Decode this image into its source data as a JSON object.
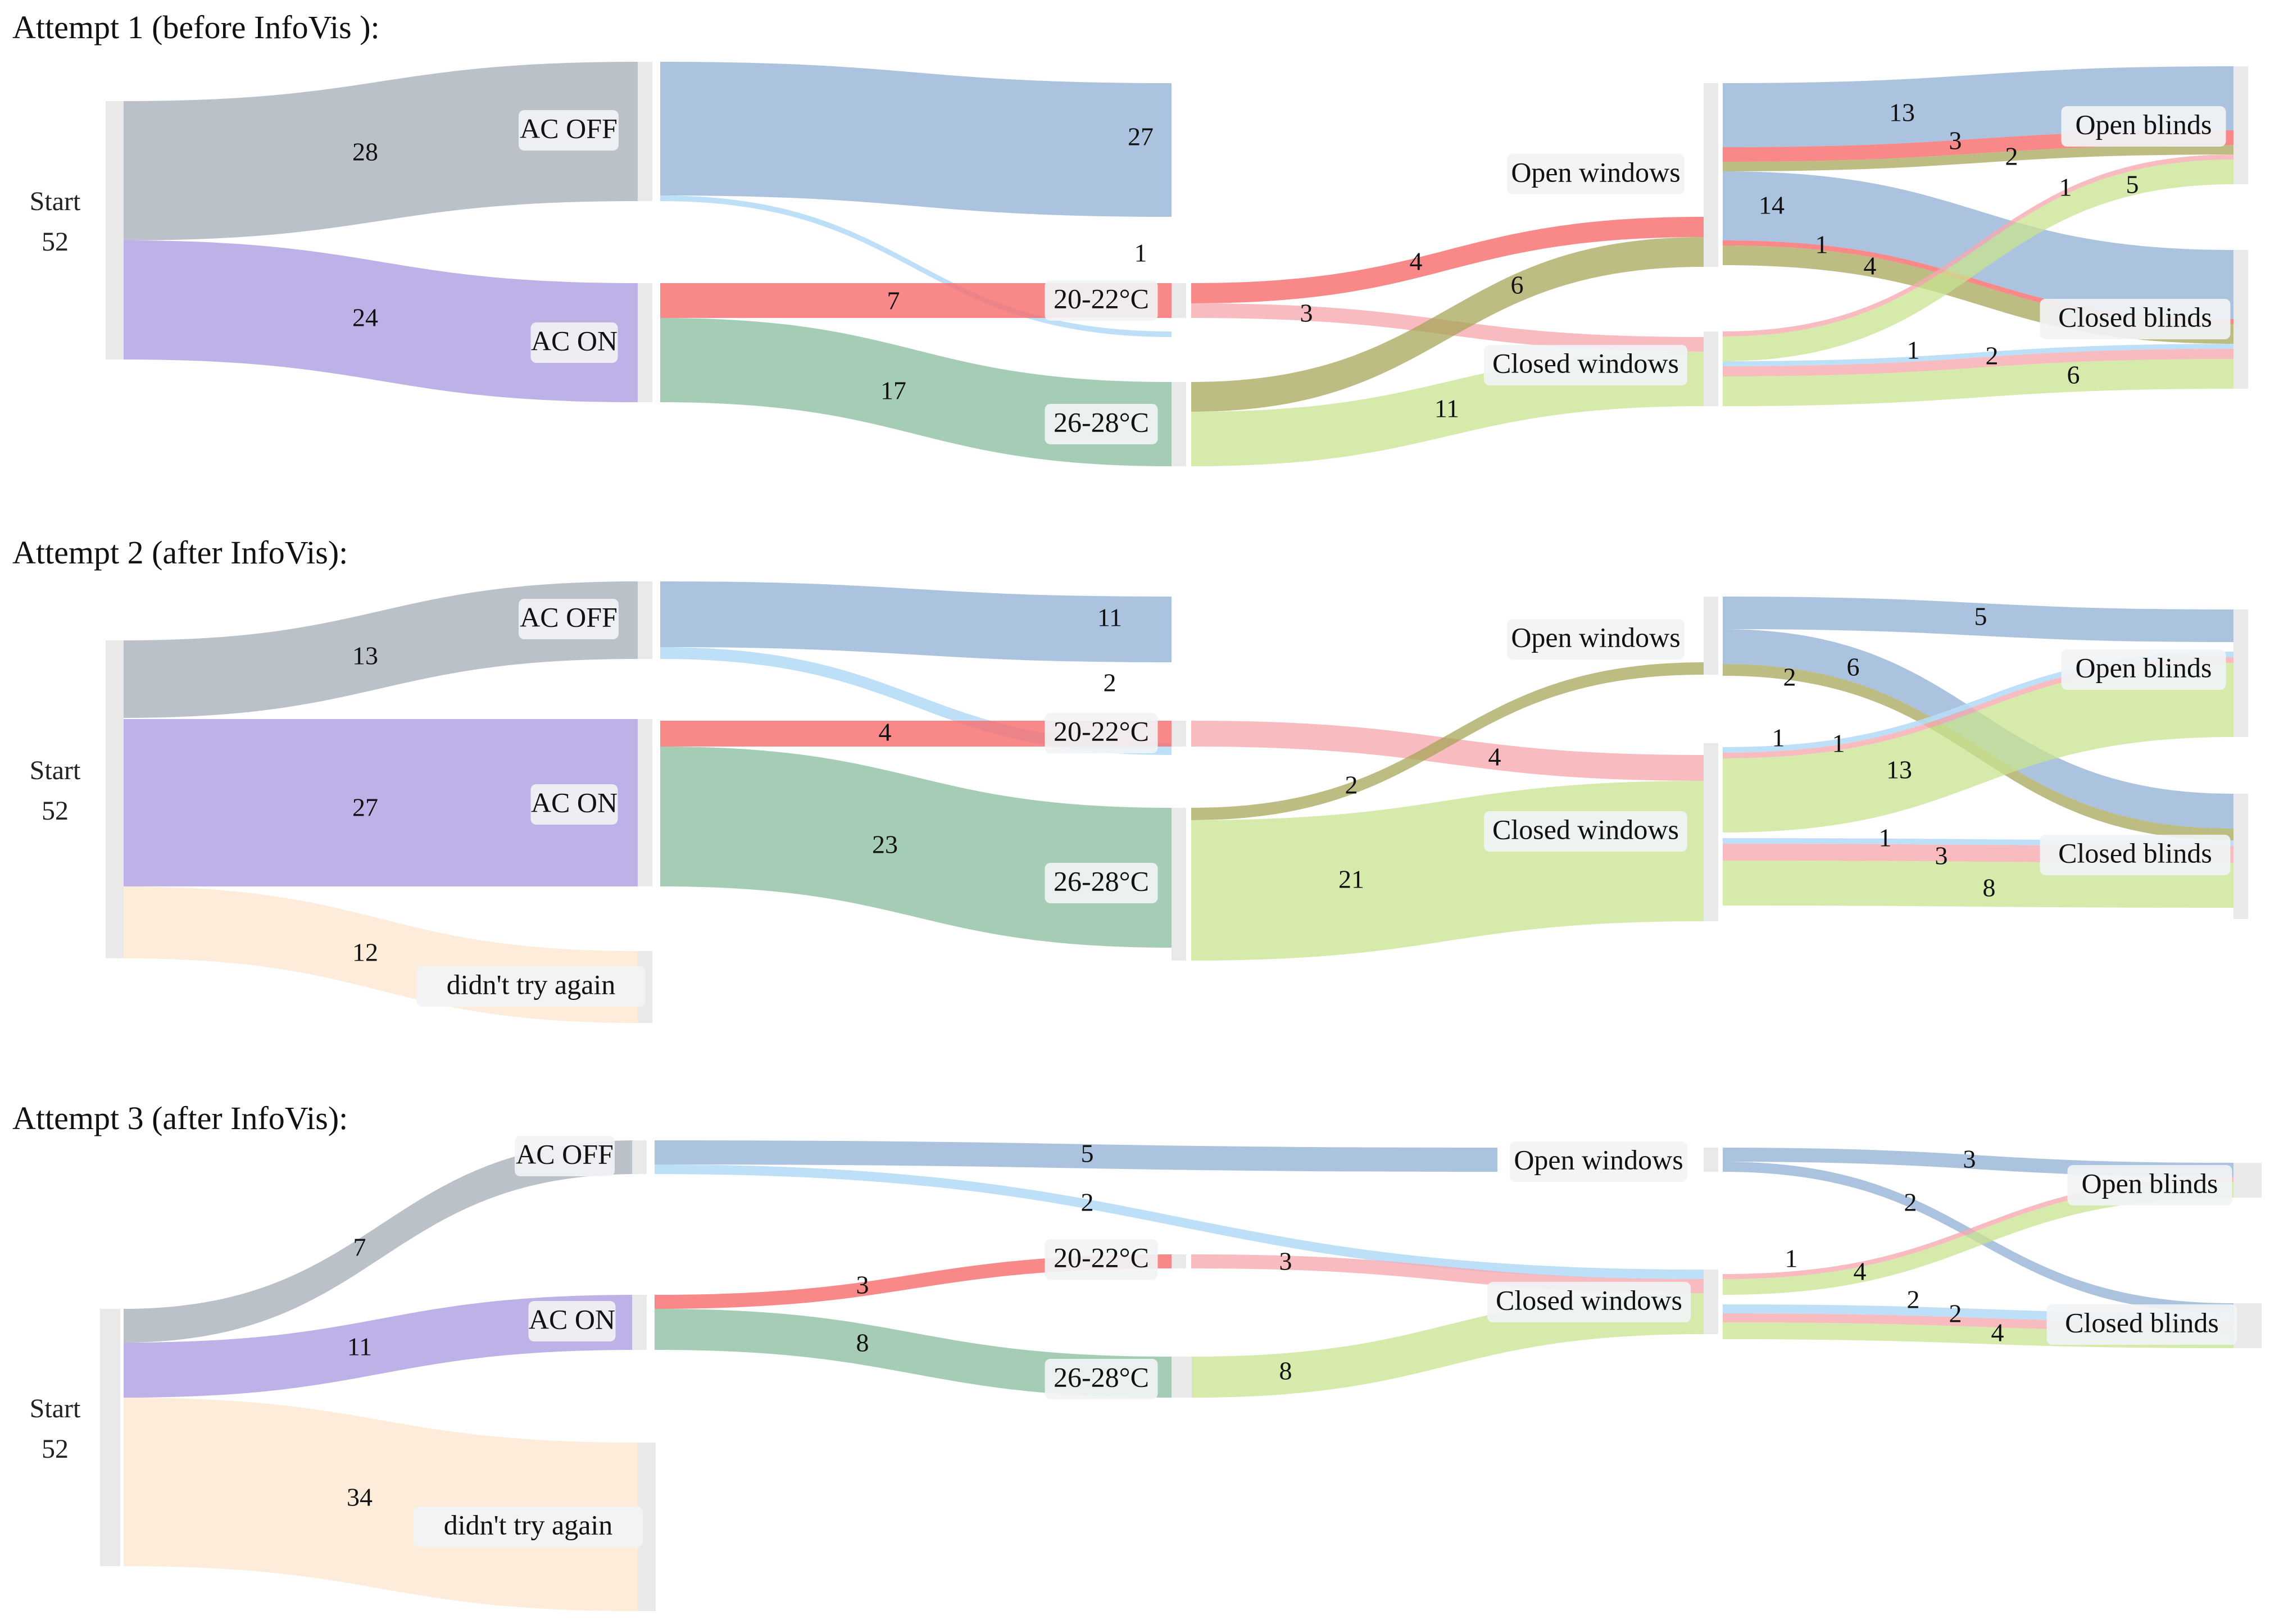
{
  "colors": {
    "ac_off": "#aab1bb",
    "ac_on": "#a797df",
    "didnt_try": "#fbe9d2",
    "warm_temp": "#f76b6b",
    "cool_temp": "#7fb796",
    "open_windows": "#8fafd3",
    "open_windows_faint": "#b7dcf7",
    "red_faint": "#f5aab0",
    "olive": "#a7a55a",
    "green_light": "#c8e38f",
    "node_bar": "#e9e9e9",
    "label_bg": "#f1f3f5"
  },
  "chart_data": [
    {
      "type": "sankey",
      "title": "Attempt 1 (before InfoVis ):",
      "start": {
        "label": "Start",
        "value": "52"
      },
      "nodes": {
        "ac_off": "AC OFF",
        "ac_on": "AC ON",
        "t20": "20-22°C",
        "t26": "26-28°C",
        "open_windows": "Open windows",
        "closed_windows": "Closed windows",
        "open_blinds": "Open blinds",
        "closed_blinds": "Closed blinds"
      },
      "links": [
        {
          "source": "Start",
          "target": "AC OFF",
          "value": 28
        },
        {
          "source": "Start",
          "target": "AC ON",
          "value": 24
        },
        {
          "source": "AC OFF",
          "target": "Open windows",
          "value": 27
        },
        {
          "source": "AC OFF",
          "target": "Closed windows",
          "value": 1
        },
        {
          "source": "AC ON",
          "target": "20-22°C",
          "value": 7
        },
        {
          "source": "AC ON",
          "target": "26-28°C",
          "value": 17
        },
        {
          "source": "20-22°C",
          "target": "Open windows",
          "value": 4
        },
        {
          "source": "20-22°C",
          "target": "Closed windows",
          "value": 3
        },
        {
          "source": "26-28°C",
          "target": "Open windows",
          "value": 6
        },
        {
          "source": "26-28°C",
          "target": "Closed windows",
          "value": 11
        },
        {
          "source": "Open windows",
          "target": "Open blinds",
          "value": 13
        },
        {
          "source": "Open windows",
          "target": "Open blinds",
          "value": 3
        },
        {
          "source": "Open windows",
          "target": "Open blinds",
          "value": 2
        },
        {
          "source": "Open windows",
          "target": "Closed blinds",
          "value": 14
        },
        {
          "source": "Open windows",
          "target": "Closed blinds",
          "value": 1
        },
        {
          "source": "Open windows",
          "target": "Closed blinds",
          "value": 4
        },
        {
          "source": "Closed windows",
          "target": "Open blinds",
          "value": 1
        },
        {
          "source": "Closed windows",
          "target": "Open blinds",
          "value": 5
        },
        {
          "source": "Closed windows",
          "target": "Closed blinds",
          "value": 1
        },
        {
          "source": "Closed windows",
          "target": "Closed blinds",
          "value": 2
        },
        {
          "source": "Closed windows",
          "target": "Closed blinds",
          "value": 6
        }
      ]
    },
    {
      "type": "sankey",
      "title": "Attempt 2 (after InfoVis):",
      "start": {
        "label": "Start",
        "value": "52"
      },
      "nodes": {
        "ac_off": "AC OFF",
        "ac_on": "AC ON",
        "didnt": "didn't try again",
        "t20": "20-22°C",
        "t26": "26-28°C",
        "open_windows": "Open windows",
        "closed_windows": "Closed windows",
        "open_blinds": "Open blinds",
        "closed_blinds": "Closed blinds"
      },
      "links": [
        {
          "source": "Start",
          "target": "AC OFF",
          "value": 13
        },
        {
          "source": "Start",
          "target": "AC ON",
          "value": 27
        },
        {
          "source": "Start",
          "target": "didn't try again",
          "value": 12
        },
        {
          "source": "AC OFF",
          "target": "Open windows",
          "value": 11
        },
        {
          "source": "AC OFF",
          "target": "Closed windows",
          "value": 2
        },
        {
          "source": "AC ON",
          "target": "20-22°C",
          "value": 4
        },
        {
          "source": "AC ON",
          "target": "26-28°C",
          "value": 23
        },
        {
          "source": "20-22°C",
          "target": "Closed windows",
          "value": 4
        },
        {
          "source": "26-28°C",
          "target": "Open windows",
          "value": 2
        },
        {
          "source": "26-28°C",
          "target": "Closed windows",
          "value": 21
        },
        {
          "source": "Open windows",
          "target": "Open blinds",
          "value": 5
        },
        {
          "source": "Open windows",
          "target": "Closed blinds",
          "value": 6
        },
        {
          "source": "Open windows",
          "target": "Closed blinds",
          "value": 2
        },
        {
          "source": "Closed windows",
          "target": "Open blinds",
          "value": 1
        },
        {
          "source": "Closed windows",
          "target": "Open blinds",
          "value": 1
        },
        {
          "source": "Closed windows",
          "target": "Open blinds",
          "value": 13
        },
        {
          "source": "Closed windows",
          "target": "Closed blinds",
          "value": 1
        },
        {
          "source": "Closed windows",
          "target": "Closed blinds",
          "value": 3
        },
        {
          "source": "Closed windows",
          "target": "Closed blinds",
          "value": 8
        }
      ]
    },
    {
      "type": "sankey",
      "title": "Attempt 3 (after InfoVis):",
      "start": {
        "label": "Start",
        "value": "52"
      },
      "nodes": {
        "ac_off": "AC OFF",
        "ac_on": "AC ON",
        "didnt": "didn't try again",
        "t20": "20-22°C",
        "t26": "26-28°C",
        "open_windows": "Open windows",
        "closed_windows": "Closed windows",
        "open_blinds": "Open blinds",
        "closed_blinds": "Closed blinds"
      },
      "links": [
        {
          "source": "Start",
          "target": "AC OFF",
          "value": 7
        },
        {
          "source": "Start",
          "target": "AC ON",
          "value": 11
        },
        {
          "source": "Start",
          "target": "didn't try again",
          "value": 34
        },
        {
          "source": "AC OFF",
          "target": "Open windows",
          "value": 5
        },
        {
          "source": "AC OFF",
          "target": "Closed windows",
          "value": 2
        },
        {
          "source": "AC ON",
          "target": "20-22°C",
          "value": 3
        },
        {
          "source": "AC ON",
          "target": "26-28°C",
          "value": 8
        },
        {
          "source": "20-22°C",
          "target": "Closed windows",
          "value": 3
        },
        {
          "source": "26-28°C",
          "target": "Closed windows",
          "value": 8
        },
        {
          "source": "Open windows",
          "target": "Open blinds",
          "value": 3
        },
        {
          "source": "Open windows",
          "target": "Closed blinds",
          "value": 2
        },
        {
          "source": "Closed windows",
          "target": "Open blinds",
          "value": 1
        },
        {
          "source": "Closed windows",
          "target": "Open blinds",
          "value": 4
        },
        {
          "source": "Closed windows",
          "target": "Closed blinds",
          "value": 2
        },
        {
          "source": "Closed windows",
          "target": "Closed blinds",
          "value": 2
        },
        {
          "source": "Closed windows",
          "target": "Closed blinds",
          "value": 4
        }
      ]
    }
  ]
}
